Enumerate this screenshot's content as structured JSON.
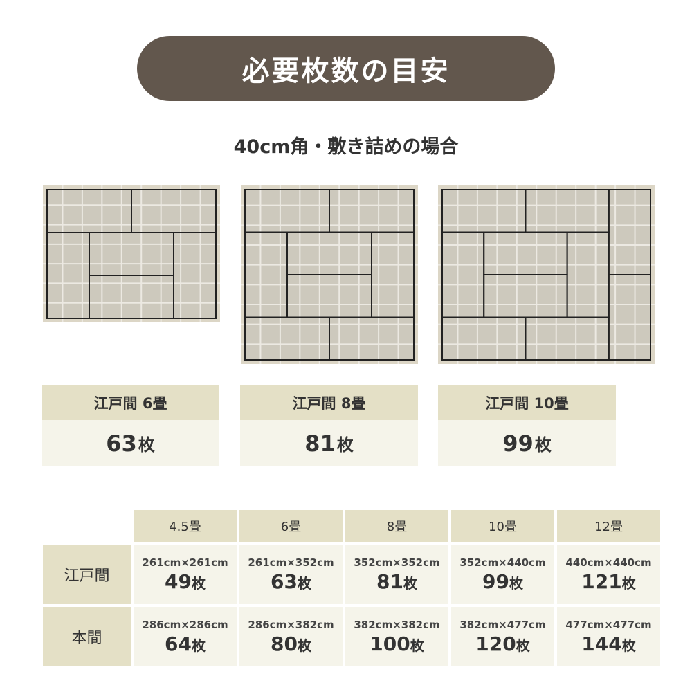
{
  "title": "必要枚数の目安",
  "subtitle": "40cm角・敷き詰めの場合",
  "colors": {
    "header": "#62574d",
    "label_bg": "#e4e0c6",
    "value_bg": "#f5f4ea",
    "tatami": "#cdc9bd",
    "frame": "#dcd6c6"
  },
  "diagrams": [
    {
      "cols": 9,
      "rows": 7,
      "units": [
        4,
        3
      ],
      "tatami": [
        [
          0,
          0,
          2,
          1
        ],
        [
          2,
          0,
          2,
          1
        ],
        [
          0,
          1,
          1,
          2
        ],
        [
          1,
          1,
          2,
          1
        ],
        [
          1,
          2,
          2,
          1
        ],
        [
          3,
          1,
          1,
          2
        ]
      ]
    },
    {
      "cols": 9,
      "rows": 9,
      "units": [
        4,
        4
      ],
      "tatami": [
        [
          0,
          0,
          2,
          1
        ],
        [
          2,
          0,
          2,
          1
        ],
        [
          0,
          1,
          1,
          2
        ],
        [
          1,
          1,
          2,
          1
        ],
        [
          1,
          2,
          2,
          1
        ],
        [
          3,
          1,
          1,
          2
        ],
        [
          0,
          3,
          2,
          1
        ],
        [
          2,
          3,
          2,
          1
        ]
      ]
    },
    {
      "cols": 11,
      "rows": 9,
      "units": [
        5,
        4
      ],
      "tatami": [
        [
          0,
          0,
          2,
          1
        ],
        [
          2,
          0,
          2,
          1
        ],
        [
          4,
          0,
          1,
          2
        ],
        [
          4,
          2,
          1,
          2
        ],
        [
          0,
          1,
          1,
          2
        ],
        [
          1,
          1,
          2,
          1
        ],
        [
          1,
          2,
          2,
          1
        ],
        [
          3,
          1,
          1,
          2
        ],
        [
          0,
          3,
          2,
          1
        ],
        [
          2,
          3,
          2,
          1
        ]
      ]
    }
  ],
  "cards": [
    {
      "label": "江戸間 6畳",
      "count": "63",
      "unit": "枚"
    },
    {
      "label": "江戸間 8畳",
      "count": "81",
      "unit": "枚"
    },
    {
      "label": "江戸間 10畳",
      "count": "99",
      "unit": "枚"
    }
  ],
  "table": {
    "headers": [
      "4.5畳",
      "6畳",
      "8畳",
      "10畳",
      "12畳"
    ],
    "rows": [
      {
        "label": "江戸間",
        "cells": [
          [
            "261cm×261cm",
            "49"
          ],
          [
            "261cm×352cm",
            "63"
          ],
          [
            "352cm×352cm",
            "81"
          ],
          [
            "352cm×440cm",
            "99"
          ],
          [
            "440cm×440cm",
            "121"
          ]
        ]
      },
      {
        "label": "本間",
        "cells": [
          [
            "286cm×286cm",
            "64"
          ],
          [
            "286cm×382cm",
            "80"
          ],
          [
            "382cm×382cm",
            "100"
          ],
          [
            "382cm×477cm",
            "120"
          ],
          [
            "477cm×477cm",
            "144"
          ]
        ]
      }
    ],
    "unit": "枚"
  }
}
